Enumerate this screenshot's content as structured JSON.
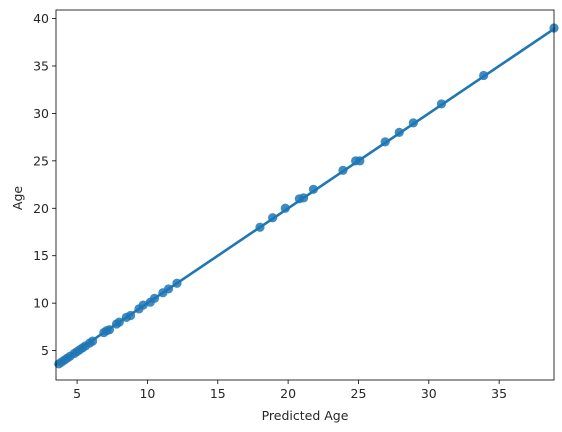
{
  "chart_data": {
    "type": "scatter",
    "title": "",
    "xlabel": "Predicted Age",
    "ylabel": "Age",
    "xlim": [
      3.5,
      38.9
    ],
    "ylim": [
      1.9,
      40.9
    ],
    "x_ticks": [
      5,
      10,
      15,
      20,
      25,
      30,
      35
    ],
    "y_ticks": [
      5,
      10,
      15,
      20,
      25,
      30,
      35,
      40
    ],
    "grid": false,
    "legend": "none",
    "regression_line": {
      "x": [
        3.5,
        38.9
      ],
      "y": [
        3.5,
        38.9
      ]
    },
    "series": [
      {
        "color": "#1f77b4",
        "points": [
          {
            "x": 3.7,
            "y": 3.6
          },
          {
            "x": 3.9,
            "y": 3.8
          },
          {
            "x": 4.1,
            "y": 4.0
          },
          {
            "x": 4.3,
            "y": 4.2
          },
          {
            "x": 4.5,
            "y": 4.4
          },
          {
            "x": 4.8,
            "y": 4.7
          },
          {
            "x": 5.0,
            "y": 4.9
          },
          {
            "x": 5.2,
            "y": 5.1
          },
          {
            "x": 5.4,
            "y": 5.3
          },
          {
            "x": 5.6,
            "y": 5.5
          },
          {
            "x": 5.9,
            "y": 5.8
          },
          {
            "x": 6.1,
            "y": 6.0
          },
          {
            "x": 6.9,
            "y": 6.9
          },
          {
            "x": 7.1,
            "y": 7.1
          },
          {
            "x": 7.3,
            "y": 7.2
          },
          {
            "x": 7.8,
            "y": 7.8
          },
          {
            "x": 8.0,
            "y": 8.0
          },
          {
            "x": 8.5,
            "y": 8.5
          },
          {
            "x": 8.8,
            "y": 8.7
          },
          {
            "x": 9.4,
            "y": 9.4
          },
          {
            "x": 9.7,
            "y": 9.8
          },
          {
            "x": 10.2,
            "y": 10.1
          },
          {
            "x": 10.5,
            "y": 10.5
          },
          {
            "x": 11.1,
            "y": 11.1
          },
          {
            "x": 11.5,
            "y": 11.5
          },
          {
            "x": 12.1,
            "y": 12.1
          },
          {
            "x": 18.0,
            "y": 18.0
          },
          {
            "x": 18.9,
            "y": 19.0
          },
          {
            "x": 19.8,
            "y": 20.0
          },
          {
            "x": 20.8,
            "y": 21.0
          },
          {
            "x": 21.1,
            "y": 21.1
          },
          {
            "x": 21.8,
            "y": 22.0
          },
          {
            "x": 23.9,
            "y": 24.0
          },
          {
            "x": 24.8,
            "y": 25.0
          },
          {
            "x": 25.1,
            "y": 25.0
          },
          {
            "x": 26.9,
            "y": 27.0
          },
          {
            "x": 27.9,
            "y": 28.0
          },
          {
            "x": 28.9,
            "y": 29.0
          },
          {
            "x": 30.9,
            "y": 31.0
          },
          {
            "x": 33.9,
            "y": 34.0
          },
          {
            "x": 38.9,
            "y": 39.0
          }
        ]
      }
    ]
  }
}
